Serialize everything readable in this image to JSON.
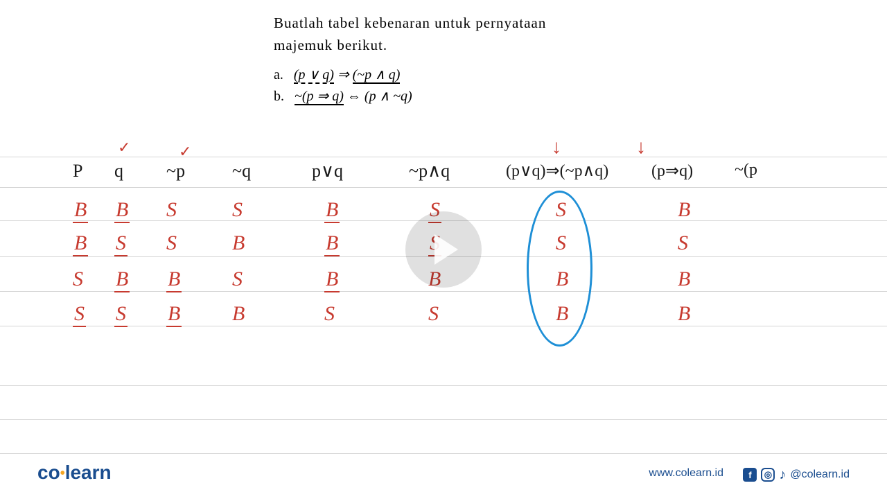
{
  "question": {
    "prompt_line1": "Buatlah tabel kebenaran untuk pernyataan",
    "prompt_line2": "majemuk berikut.",
    "item_a_label": "a.",
    "item_a_lhs": "(p ∨ q)",
    "item_a_arrow": "⇒",
    "item_a_rhs": "(~p ∧ q)",
    "item_b_label": "b.",
    "item_b_lhs": "~(p ⇒ q)",
    "item_b_arrow": "⇔",
    "item_b_rhs": "(p ∧ ~q)"
  },
  "colors": {
    "handwritten_red": "#c73a2f",
    "handwritten_black": "#1a1a1a",
    "circle_blue": "#1e8fd6",
    "rule_gray": "#d5d5d5",
    "brand_blue": "#1a4d8f",
    "brand_orange": "#f5a623",
    "background": "#ffffff"
  },
  "table": {
    "headers": {
      "p": "P",
      "q": "q",
      "np": "~p",
      "nq": "~q",
      "pvq": "p∨q",
      "npaq": "~p∧q",
      "res1": "(p∨q)⇒(~p∧q)",
      "pimq": "(p⇒q)",
      "npim": "~(p"
    },
    "header_color": "#1a1a1a",
    "data_color": "#c73a2f",
    "rows": [
      {
        "p": "B",
        "q": "B",
        "np": "S",
        "nq": "S",
        "pvq": "B",
        "npaq": "S",
        "res1": "S",
        "pimq": "B",
        "p_u": true,
        "q_u": true,
        "pvq_u": true,
        "npaq_u": true
      },
      {
        "p": "B",
        "q": "S",
        "np": "S",
        "nq": "B",
        "pvq": "B",
        "npaq": "S",
        "res1": "S",
        "pimq": "S",
        "p_u": true,
        "q_u": true,
        "pvq_u": true,
        "npaq_u": true
      },
      {
        "p": "S",
        "q": "B",
        "np": "B",
        "nq": "S",
        "pvq": "B",
        "npaq": "B",
        "res1": "B",
        "pimq": "B",
        "q_u": true,
        "np_u": true,
        "pvq_u": true
      },
      {
        "p": "S",
        "q": "S",
        "np": "B",
        "nq": "B",
        "pvq": "S",
        "npaq": "S",
        "res1": "B",
        "pimq": "B",
        "p_u": true,
        "q_u": true,
        "np_u": true
      }
    ],
    "row_top_positions": [
      286,
      334,
      386,
      436
    ]
  },
  "rule_lines": [
    226,
    270,
    318,
    370,
    420,
    470,
    556,
    605,
    654
  ],
  "annotations": {
    "check_q": "✓",
    "check_np": "✓",
    "arrow_res1": "↓",
    "arrow_pimq": "↓"
  },
  "footer": {
    "logo_co": "co",
    "logo_dot": "•",
    "logo_learn": "learn",
    "url": "www.colearn.id",
    "handle": "@colearn.id",
    "fb": "f",
    "insta": "◎",
    "tiktok": "♪"
  }
}
